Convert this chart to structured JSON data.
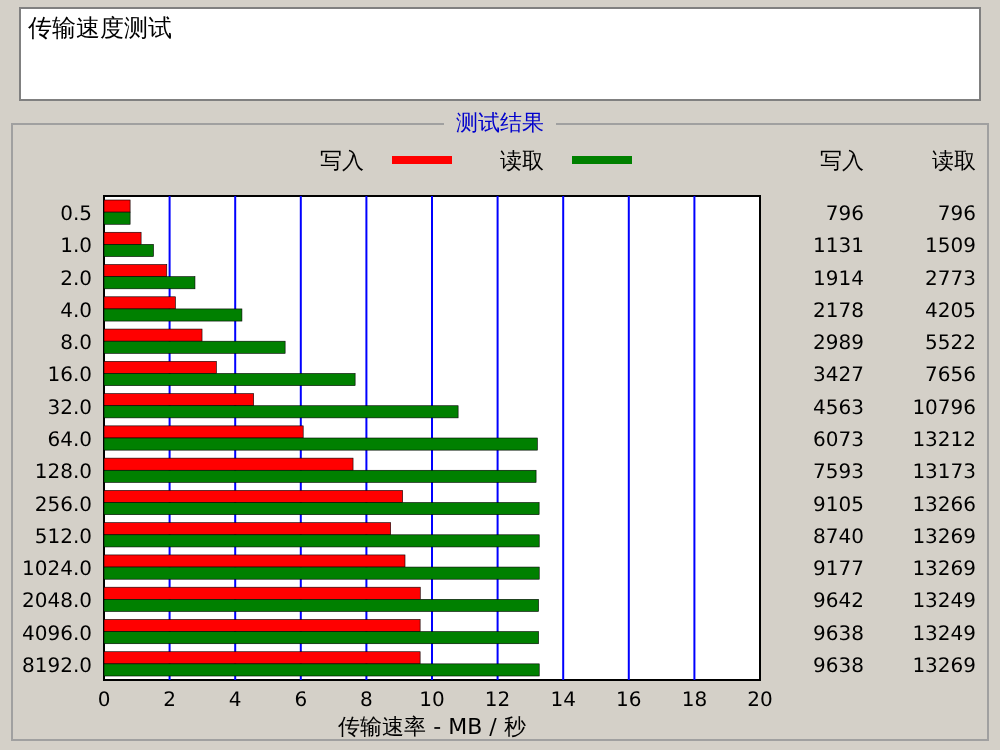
{
  "chart_data": {
    "type": "bar",
    "orientation": "horizontal",
    "title": "传输速度测试",
    "subtitle": "测试结果",
    "categories": [
      "0.5",
      "1.0",
      "2.0",
      "4.0",
      "8.0",
      "16.0",
      "32.0",
      "64.0",
      "128.0",
      "256.0",
      "512.0",
      "1024.0",
      "2048.0",
      "4096.0",
      "8192.0"
    ],
    "series": [
      {
        "name": "写入",
        "color": "#ff0000",
        "values": [
          0.796,
          1.131,
          1.914,
          2.178,
          2.989,
          3.427,
          4.563,
          6.073,
          7.593,
          9.105,
          8.74,
          9.177,
          9.642,
          9.638,
          9.638
        ]
      },
      {
        "name": "读取",
        "color": "#008000",
        "values": [
          0.796,
          1.509,
          2.773,
          4.205,
          5.522,
          7.656,
          10.796,
          13.212,
          13.173,
          13.266,
          13.269,
          13.269,
          13.249,
          13.249,
          13.269
        ]
      }
    ],
    "xlim": [
      0,
      20
    ],
    "xticks": [
      0,
      2,
      4,
      6,
      8,
      10,
      12,
      14,
      16,
      18,
      20
    ],
    "xlabel": "传输速率 - MB / 秒",
    "grid": "x",
    "legend": "top",
    "annotations": [
      "写入",
      "读取",
      "796",
      "796",
      "1131",
      "1509",
      "1914",
      "2773",
      "2178",
      "4205",
      "2989",
      "5522",
      "3427",
      "7656",
      "4563",
      "10796",
      "6073",
      "13212",
      "7593",
      "13173",
      "9105",
      "13266",
      "8740",
      "13269",
      "9177",
      "13269",
      "9642",
      "13249",
      "9638",
      "13249",
      "9638",
      "13269"
    ]
  }
}
